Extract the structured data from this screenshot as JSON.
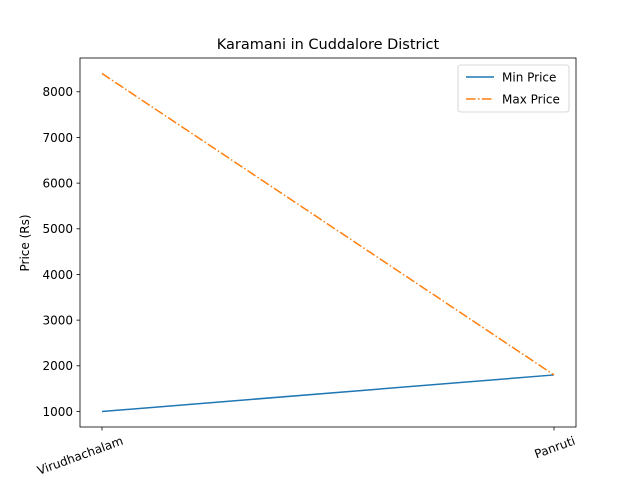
{
  "chart_data": {
    "type": "line",
    "title": "Karamani in Cuddalore District",
    "xlabel": "",
    "ylabel": "Price (Rs)",
    "categories": [
      "Virudhachalam",
      "Panruti"
    ],
    "series": [
      {
        "name": "Min Price",
        "values": [
          1000,
          1800
        ],
        "color": "#1f77b4",
        "style": "solid"
      },
      {
        "name": "Max Price",
        "values": [
          8400,
          1800
        ],
        "color": "#ff7f0e",
        "style": "dashdot"
      }
    ],
    "ylim": [
      660,
      8740
    ],
    "yticks": [
      1000,
      2000,
      3000,
      4000,
      5000,
      6000,
      7000,
      8000
    ],
    "xtick_rotation": 20,
    "grid": false,
    "legend_position": "top-right"
  }
}
